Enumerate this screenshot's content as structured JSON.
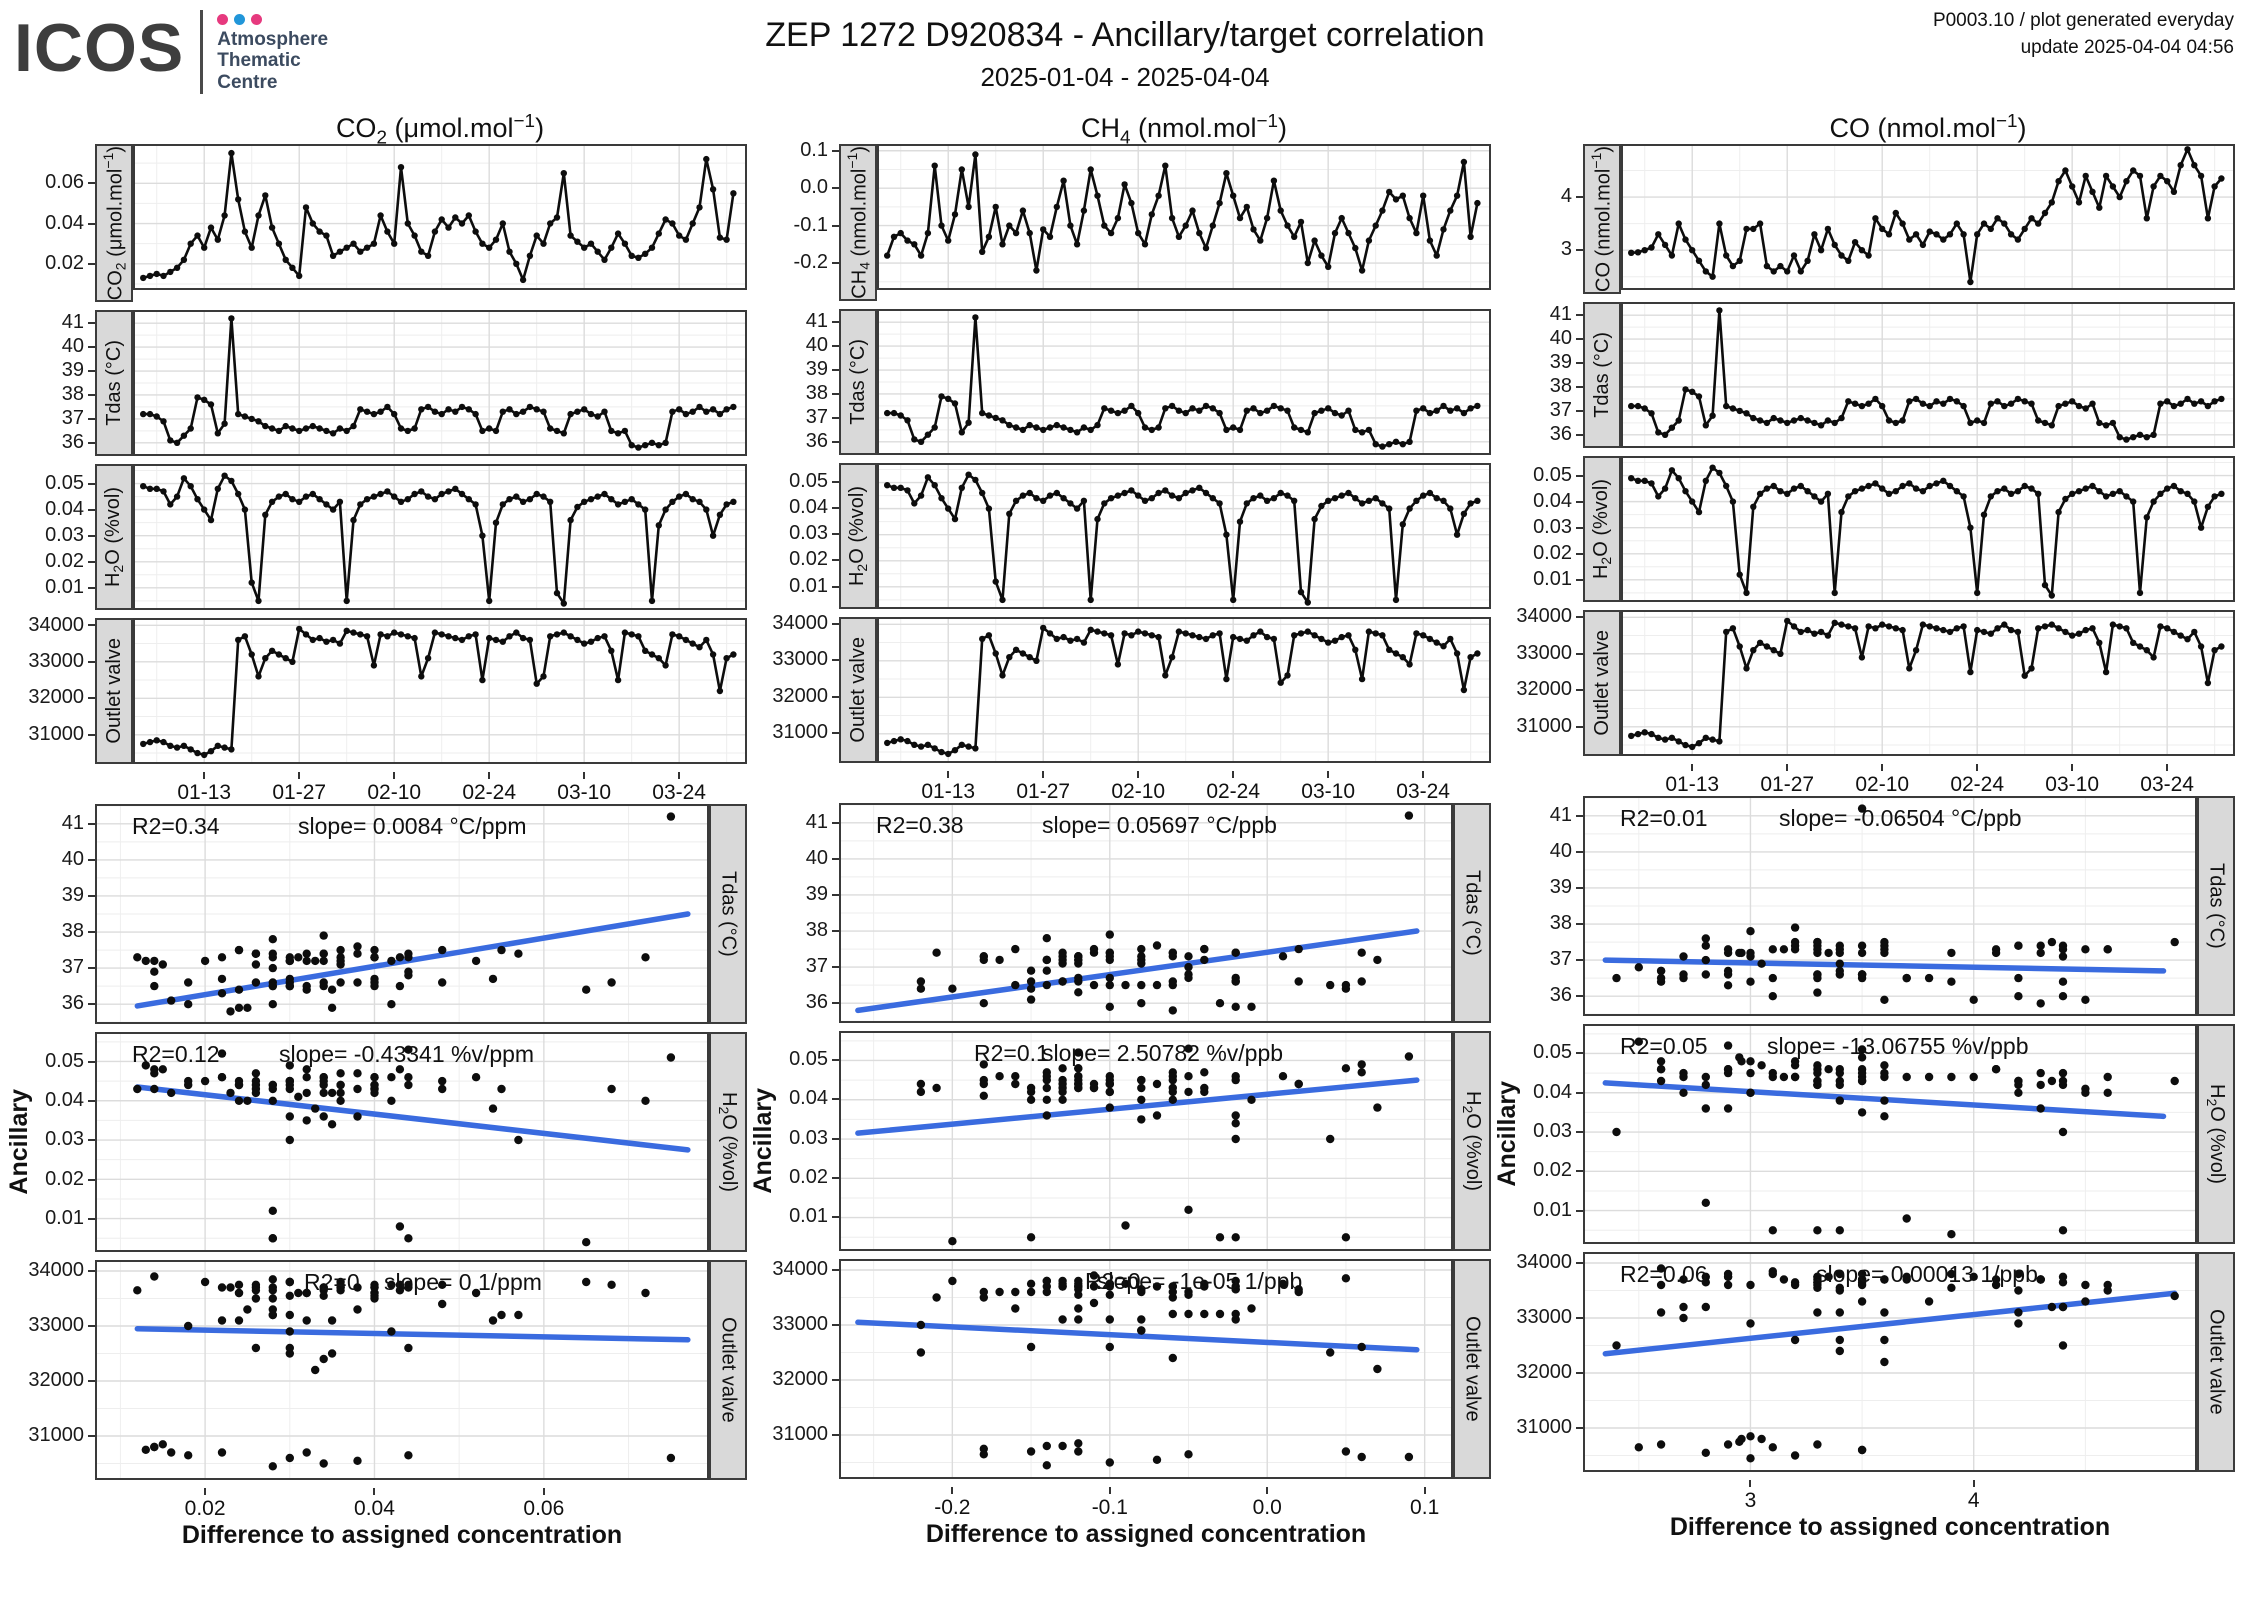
{
  "header": {
    "logo_text": "ICOS",
    "logo_sub1": "Atmosphere",
    "logo_sub2": "Thematic",
    "logo_sub3": "Centre",
    "dot_colors": [
      "#e6397e",
      "#2196d9",
      "#e6397e"
    ],
    "title": "ZEP 1272 D920834 - Ancillary/target correlation",
    "subtitle": "2025-01-04 - 2025-04-04",
    "meta_line1": "P0003.10 / plot generated everyday",
    "meta_line2": "update  2025-04-04 04:56"
  },
  "chart_data": {
    "type": "line",
    "note_types": [
      "12 time-series panels (line+points)",
      "9 scatter panels with linear fit"
    ],
    "xlabel_scatter": "Difference to assigned concentration",
    "ylabel_scatter": "Ancillary",
    "colors": {
      "series": "#0d0d0d",
      "fit_line": "#3a6bdf",
      "strip_bg": "#d9d9d9",
      "panel_border": "#3a3a3a",
      "grid_major": "#dcdcdc",
      "grid_minor": "#eeeeee"
    },
    "time_axis": {
      "n": 88,
      "tick_idx": [
        9,
        23,
        37,
        51,
        65,
        79
      ],
      "tick_labels": [
        "01-13",
        "01-27",
        "02-10",
        "02-24",
        "03-10",
        "03-24"
      ],
      "range": [
        -1.5,
        89
      ]
    },
    "axes": {
      "co2": {
        "range": [
          0.007,
          0.0795
        ],
        "ticks": [
          0.02,
          0.04,
          0.06
        ],
        "labels": [
          "0.02",
          "0.04",
          "0.06"
        ],
        "strip": [
          {
            "t": "CO"
          },
          {
            "t": "2",
            "v": "sub"
          },
          {
            "t": " (μmol.mol"
          },
          {
            "t": "−1",
            "v": "sup"
          },
          {
            "t": ")"
          }
        ]
      },
      "ch4": {
        "range": [
          -0.272,
          0.118
        ],
        "ticks": [
          -0.2,
          -0.1,
          0.0,
          0.1
        ],
        "labels": [
          "-0.2",
          "-0.1",
          "0.0",
          "0.1"
        ],
        "strip": [
          {
            "t": "CH"
          },
          {
            "t": "4",
            "v": "sub"
          },
          {
            "t": " (nmol.mol"
          },
          {
            "t": "−1",
            "v": "sup"
          },
          {
            "t": ")"
          }
        ]
      },
      "co": {
        "range": [
          2.25,
          5.0
        ],
        "ticks": [
          3,
          4
        ],
        "labels": [
          "3",
          "4"
        ],
        "strip": [
          {
            "t": "CO (nmol.mol"
          },
          {
            "t": "−1",
            "v": "sup"
          },
          {
            "t": ")"
          }
        ]
      },
      "tdas": {
        "range": [
          35.45,
          41.55
        ],
        "ticks": [
          36,
          37,
          38,
          39,
          40,
          41
        ],
        "labels": [
          "36",
          "37",
          "38",
          "39",
          "40",
          "41"
        ],
        "strip": [
          {
            "t": "Tdas (°C)"
          }
        ]
      },
      "h2o": {
        "range": [
          0.0015,
          0.0575
        ],
        "ticks": [
          0.01,
          0.02,
          0.03,
          0.04,
          0.05
        ],
        "labels": [
          "0.01",
          "0.02",
          "0.03",
          "0.04",
          "0.05"
        ],
        "strip": [
          {
            "t": "H"
          },
          {
            "t": "2",
            "v": "sub"
          },
          {
            "t": "O (%vol)"
          }
        ]
      },
      "outlet": {
        "range": [
          30200,
          34200
        ],
        "ticks": [
          31000,
          32000,
          33000,
          34000
        ],
        "labels": [
          "31000",
          "32000",
          "33000",
          "34000"
        ],
        "strip": [
          {
            "t": "Outlet valve"
          }
        ]
      }
    },
    "series": {
      "co2": [
        0.013,
        0.014,
        0.015,
        0.014,
        0.016,
        0.018,
        0.022,
        0.03,
        0.034,
        0.028,
        0.038,
        0.032,
        0.044,
        0.075,
        0.052,
        0.036,
        0.028,
        0.044,
        0.054,
        0.038,
        0.03,
        0.022,
        0.018,
        0.014,
        0.048,
        0.04,
        0.036,
        0.034,
        0.024,
        0.026,
        0.028,
        0.03,
        0.026,
        0.028,
        0.03,
        0.044,
        0.036,
        0.03,
        0.068,
        0.04,
        0.034,
        0.026,
        0.024,
        0.036,
        0.042,
        0.038,
        0.043,
        0.04,
        0.044,
        0.036,
        0.03,
        0.028,
        0.032,
        0.04,
        0.026,
        0.02,
        0.012,
        0.024,
        0.034,
        0.03,
        0.04,
        0.043,
        0.065,
        0.034,
        0.031,
        0.028,
        0.03,
        0.026,
        0.022,
        0.028,
        0.035,
        0.03,
        0.024,
        0.023,
        0.025,
        0.028,
        0.035,
        0.042,
        0.04,
        0.034,
        0.032,
        0.04,
        0.048,
        0.072,
        0.057,
        0.033,
        0.032,
        0.055
      ],
      "ch4": [
        -0.18,
        -0.13,
        -0.12,
        -0.14,
        -0.15,
        -0.18,
        -0.12,
        0.06,
        -0.1,
        -0.14,
        -0.07,
        0.05,
        -0.05,
        0.09,
        -0.17,
        -0.13,
        -0.05,
        -0.15,
        -0.1,
        -0.12,
        -0.06,
        -0.12,
        -0.22,
        -0.11,
        -0.13,
        -0.05,
        0.02,
        -0.1,
        -0.15,
        -0.06,
        0.05,
        -0.02,
        -0.1,
        -0.12,
        -0.08,
        0.01,
        -0.04,
        -0.12,
        -0.15,
        -0.07,
        -0.02,
        0.06,
        -0.08,
        -0.13,
        -0.1,
        -0.06,
        -0.12,
        -0.16,
        -0.1,
        -0.04,
        0.04,
        -0.02,
        -0.08,
        -0.05,
        -0.11,
        -0.14,
        -0.08,
        0.02,
        -0.06,
        -0.1,
        -0.13,
        -0.09,
        -0.2,
        -0.14,
        -0.18,
        -0.21,
        -0.12,
        -0.08,
        -0.12,
        -0.16,
        -0.22,
        -0.14,
        -0.1,
        -0.06,
        -0.01,
        -0.03,
        -0.02,
        -0.08,
        -0.12,
        -0.02,
        -0.14,
        -0.18,
        -0.11,
        -0.06,
        -0.02,
        0.07,
        -0.13,
        -0.04
      ],
      "co": [
        2.95,
        2.96,
        3.0,
        3.05,
        3.3,
        3.1,
        2.9,
        3.5,
        3.2,
        3.0,
        2.8,
        2.6,
        2.5,
        3.5,
        2.9,
        2.7,
        2.8,
        3.4,
        3.4,
        3.5,
        2.7,
        2.6,
        2.7,
        2.6,
        2.9,
        2.6,
        2.8,
        3.3,
        3.0,
        3.4,
        3.1,
        2.9,
        2.8,
        3.15,
        3.0,
        2.9,
        3.6,
        3.4,
        3.3,
        3.7,
        3.5,
        3.2,
        3.3,
        3.1,
        3.35,
        3.3,
        3.2,
        3.3,
        3.5,
        3.3,
        2.4,
        3.3,
        3.5,
        3.4,
        3.6,
        3.5,
        3.3,
        3.2,
        3.4,
        3.6,
        3.5,
        3.7,
        3.9,
        4.3,
        4.5,
        4.2,
        3.9,
        4.4,
        4.1,
        3.8,
        4.4,
        4.2,
        4.0,
        4.3,
        4.5,
        4.4,
        3.6,
        4.2,
        4.4,
        4.3,
        4.1,
        4.6,
        4.9,
        4.6,
        4.4,
        3.6,
        4.2,
        4.35
      ],
      "tdas": [
        37.2,
        37.2,
        37.1,
        36.9,
        36.1,
        36.0,
        36.3,
        36.6,
        37.9,
        37.8,
        37.6,
        36.4,
        36.8,
        41.2,
        37.2,
        37.1,
        37.0,
        36.9,
        36.7,
        36.6,
        36.5,
        36.7,
        36.6,
        36.5,
        36.6,
        36.7,
        36.6,
        36.5,
        36.4,
        36.6,
        36.5,
        36.7,
        37.4,
        37.3,
        37.2,
        37.3,
        37.5,
        37.2,
        36.6,
        36.5,
        36.6,
        37.4,
        37.5,
        37.3,
        37.2,
        37.4,
        37.3,
        37.5,
        37.4,
        37.2,
        36.5,
        36.6,
        36.5,
        37.3,
        37.4,
        37.2,
        37.3,
        37.5,
        37.4,
        37.3,
        36.6,
        36.5,
        36.4,
        37.2,
        37.3,
        37.4,
        37.2,
        37.1,
        37.3,
        36.5,
        36.4,
        36.5,
        35.9,
        35.8,
        35.9,
        36.0,
        35.9,
        36.0,
        37.3,
        37.4,
        37.2,
        37.3,
        37.5,
        37.3,
        37.4,
        37.2,
        37.4,
        37.5
      ],
      "h2o": [
        0.049,
        0.048,
        0.048,
        0.047,
        0.042,
        0.045,
        0.052,
        0.049,
        0.044,
        0.04,
        0.036,
        0.048,
        0.053,
        0.051,
        0.046,
        0.04,
        0.012,
        0.005,
        0.038,
        0.043,
        0.045,
        0.046,
        0.044,
        0.043,
        0.045,
        0.046,
        0.044,
        0.042,
        0.04,
        0.043,
        0.005,
        0.036,
        0.042,
        0.044,
        0.045,
        0.046,
        0.047,
        0.045,
        0.043,
        0.044,
        0.046,
        0.047,
        0.045,
        0.044,
        0.046,
        0.047,
        0.048,
        0.046,
        0.044,
        0.042,
        0.03,
        0.005,
        0.035,
        0.042,
        0.044,
        0.045,
        0.043,
        0.044,
        0.046,
        0.045,
        0.043,
        0.008,
        0.004,
        0.036,
        0.041,
        0.043,
        0.044,
        0.045,
        0.046,
        0.044,
        0.042,
        0.043,
        0.044,
        0.042,
        0.04,
        0.005,
        0.034,
        0.04,
        0.043,
        0.045,
        0.046,
        0.044,
        0.043,
        0.04,
        0.03,
        0.038,
        0.042,
        0.043
      ],
      "outlet": [
        30750,
        30800,
        30850,
        30800,
        30700,
        30650,
        30700,
        30600,
        30500,
        30450,
        30550,
        30700,
        30650,
        30600,
        33600,
        33700,
        33200,
        32600,
        33100,
        33300,
        33200,
        33100,
        33000,
        33900,
        33750,
        33600,
        33650,
        33550,
        33600,
        33500,
        33850,
        33800,
        33750,
        33700,
        32900,
        33750,
        33700,
        33800,
        33750,
        33700,
        33650,
        32600,
        33100,
        33800,
        33750,
        33700,
        33650,
        33600,
        33700,
        33750,
        32500,
        33650,
        33600,
        33550,
        33700,
        33800,
        33650,
        33600,
        32400,
        32600,
        33700,
        33750,
        33800,
        33700,
        33600,
        33500,
        33550,
        33650,
        33700,
        33300,
        32500,
        33800,
        33750,
        33700,
        33300,
        33200,
        33100,
        32900,
        33750,
        33700,
        33600,
        33500,
        33400,
        33600,
        33200,
        32200,
        33100,
        33200
      ]
    },
    "columns": [
      {
        "id": "co2",
        "species": "co2",
        "ts_rows": [
          "co2",
          "tdas",
          "h2o",
          "outlet"
        ],
        "scatters": [
          {
            "y": "tdas",
            "r2": "R2=0.34",
            "slope": "slope= 0.0084 °C/ppm",
            "r2_x": 0.06,
            "slope_x": 0.33,
            "line": {
              "x1": 0.012,
              "y1": 35.95,
              "x2": 0.077,
              "y2": 38.5
            }
          },
          {
            "y": "h2o",
            "r2": "R2=0.12",
            "slope": "slope= -0.43341 %v/ppm",
            "r2_x": 0.06,
            "slope_x": 0.3,
            "line": {
              "x1": 0.012,
              "y1": 0.0435,
              "x2": 0.077,
              "y2": 0.0275
            }
          },
          {
            "y": "outlet",
            "r2": "R2=0",
            "slope": "slope= 0 1/ppm",
            "r2_x": 0.34,
            "slope_x": 0.47,
            "line": {
              "x1": 0.012,
              "y1": 32950,
              "x2": 0.077,
              "y2": 32750
            }
          }
        ]
      },
      {
        "id": "ch4",
        "species": "ch4",
        "ts_rows": [
          "ch4",
          "tdas",
          "h2o",
          "outlet"
        ],
        "scatters": [
          {
            "y": "tdas",
            "r2": "R2=0.38",
            "slope": "slope= 0.05697 °C/ppb",
            "r2_x": 0.06,
            "slope_x": 0.33,
            "line": {
              "x1": -0.26,
              "y1": 35.8,
              "x2": 0.095,
              "y2": 38.0
            }
          },
          {
            "y": "h2o",
            "r2": "R2=0.1",
            "slope": "slope= 2.50782 %v/ppb",
            "r2_x": 0.22,
            "slope_x": 0.33,
            "line": {
              "x1": -0.26,
              "y1": 0.0315,
              "x2": 0.095,
              "y2": 0.045
            }
          },
          {
            "y": "outlet",
            "r2": "R2=0",
            "slope": "slope= -1e-05 1/ppb",
            "r2_x": 0.4,
            "slope_x": 0.42,
            "line": {
              "x1": -0.26,
              "y1": 33050,
              "x2": 0.095,
              "y2": 32550
            }
          }
        ]
      },
      {
        "id": "co",
        "species": "co",
        "ts_rows": [
          "co",
          "tdas",
          "h2o",
          "outlet"
        ],
        "scatters": [
          {
            "y": "tdas",
            "r2": "R2=0.01",
            "slope": "slope= -0.06504 °C/ppb",
            "r2_x": 0.06,
            "slope_x": 0.32,
            "line": {
              "x1": 2.35,
              "y1": 37.0,
              "x2": 4.85,
              "y2": 36.7
            }
          },
          {
            "y": "h2o",
            "r2": "R2=0.05",
            "slope": "slope= -13.06755 %v/ppb",
            "r2_x": 0.06,
            "slope_x": 0.3,
            "line": {
              "x1": 2.35,
              "y1": 0.0425,
              "x2": 4.85,
              "y2": 0.034
            }
          },
          {
            "y": "outlet",
            "r2": "R2=0.06",
            "slope": "slope= 0.00013 1/ppb",
            "r2_x": 0.06,
            "slope_x": 0.38,
            "line": {
              "x1": 2.35,
              "y1": 32350,
              "x2": 4.9,
              "y2": 33450
            }
          }
        ]
      }
    ]
  }
}
